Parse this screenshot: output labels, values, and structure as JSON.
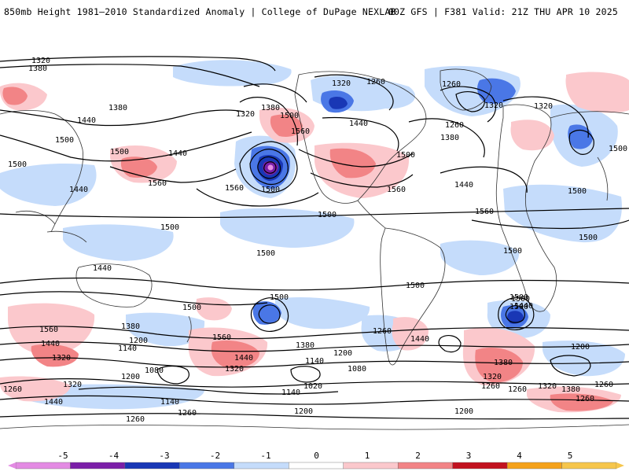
{
  "header": {
    "title_left": "850mb Height 1981–2010 Standardized Anomaly | College of DuPage NEXLAB",
    "title_right": "00Z GFS | F381 Valid: 21Z THU APR 10 2025"
  },
  "colors": {
    "neg5": "#e38be3",
    "neg4": "#7b1fa8",
    "neg3": "#1937b5",
    "neg2": "#4a77e6",
    "neg1": "#c5dcfb",
    "zero": "#ffffff",
    "pos1": "#fbc8cc",
    "pos2": "#f28486",
    "pos3": "#c2121f",
    "pos4": "#f5a21a",
    "pos5": "#f6c64c",
    "contour": "#000000",
    "coast": "#333333"
  },
  "colorbar": {
    "ticks": [
      "-5",
      "-4",
      "-3",
      "-2",
      "-1",
      "0",
      "1",
      "2",
      "3",
      "4",
      "5"
    ]
  },
  "contour_labels": [
    {
      "id": "np-1320-a",
      "text": "1320"
    },
    {
      "id": "np-1380-a",
      "text": "1380"
    },
    {
      "id": "np-1440-a",
      "text": "1440"
    },
    {
      "id": "np-1500-a",
      "text": "1500"
    },
    {
      "id": "np-1500-b",
      "text": "1500"
    },
    {
      "id": "np-1500-c",
      "text": "1500"
    },
    {
      "id": "np-1560-a",
      "text": "1560"
    },
    {
      "id": "np-1440-b",
      "text": "1440"
    },
    {
      "id": "np-1440-c",
      "text": "1440"
    },
    {
      "id": "na-1380-b",
      "text": "1380"
    },
    {
      "id": "na-1320-b",
      "text": "1320"
    },
    {
      "id": "na-1500-d",
      "text": "1500"
    },
    {
      "id": "na-1560-b",
      "text": "1560"
    },
    {
      "id": "pac-1500-low",
      "text": "1500"
    },
    {
      "id": "pac-1560-c",
      "text": "1560"
    },
    {
      "id": "ak-1320-c",
      "text": "1320"
    },
    {
      "id": "ak-1380-c",
      "text": "1380"
    },
    {
      "id": "can-1320-d",
      "text": "1320"
    },
    {
      "id": "can-1260-a",
      "text": "1260"
    },
    {
      "id": "can-1500-e",
      "text": "1500"
    },
    {
      "id": "can-1440-d",
      "text": "1440"
    },
    {
      "id": "us-1560-d",
      "text": "1560"
    },
    {
      "id": "us-1500-f",
      "text": "1500"
    },
    {
      "id": "atl-1380-d",
      "text": "1380"
    },
    {
      "id": "atl-1260-b",
      "text": "1260"
    },
    {
      "id": "gl-1260-c",
      "text": "1260"
    },
    {
      "id": "gl-1320-e",
      "text": "1320"
    },
    {
      "id": "eu-1440-e",
      "text": "1440"
    },
    {
      "id": "atl-1560-e",
      "text": "1560"
    },
    {
      "id": "atl-1500-g",
      "text": "1500"
    },
    {
      "id": "af-1500-h",
      "text": "1500"
    },
    {
      "id": "af-1500-i",
      "text": "1500"
    },
    {
      "id": "af-1500-j",
      "text": "1500"
    },
    {
      "id": "as-1500-k",
      "text": "1500"
    },
    {
      "id": "as-1440-f",
      "text": "1440"
    },
    {
      "id": "io-1500-l",
      "text": "1500"
    },
    {
      "id": "io-1500-m",
      "text": "1500"
    },
    {
      "id": "sp-1500-n",
      "text": "1500"
    },
    {
      "id": "sp-1500-o",
      "text": "1500"
    },
    {
      "id": "sa-1500-p",
      "text": "1500"
    },
    {
      "id": "sa-1500-q",
      "text": "1500"
    },
    {
      "id": "sh-1560-f",
      "text": "1560"
    },
    {
      "id": "sh-1440-g",
      "text": "1440"
    },
    {
      "id": "sh-1320-f",
      "text": "1320"
    },
    {
      "id": "sh-1260-d",
      "text": "1260"
    },
    {
      "id": "sh-1440-h",
      "text": "1440"
    },
    {
      "id": "sh-1380-e",
      "text": "1380"
    },
    {
      "id": "sh-1320-g",
      "text": "1320"
    },
    {
      "id": "sh-1200-a",
      "text": "1200"
    },
    {
      "id": "sh-1140-a",
      "text": "1140"
    },
    {
      "id": "sh-1080-a",
      "text": "1080"
    },
    {
      "id": "sh-1200-b",
      "text": "1200"
    },
    {
      "id": "sh-1140-b",
      "text": "1140"
    },
    {
      "id": "sh-1260-e",
      "text": "1260"
    },
    {
      "id": "sh-1560-g",
      "text": "1560"
    },
    {
      "id": "sh-1440-i",
      "text": "1440"
    },
    {
      "id": "sh-1320-h",
      "text": "1320"
    },
    {
      "id": "sh-1380-f",
      "text": "1380"
    },
    {
      "id": "sh-1200-c",
      "text": "1200"
    },
    {
      "id": "sh-1140-c",
      "text": "1140"
    },
    {
      "id": "sh-1080-b",
      "text": "1080"
    },
    {
      "id": "sh-1020-a",
      "text": "1020"
    },
    {
      "id": "sh-1140-d",
      "text": "1140"
    },
    {
      "id": "sh-1200-d",
      "text": "1200"
    },
    {
      "id": "sh-1260-f",
      "text": "1260"
    },
    {
      "id": "sh-1440-j",
      "text": "1440"
    },
    {
      "id": "sh-1500-r",
      "text": "1500"
    },
    {
      "id": "sh-1440-k",
      "text": "1440"
    },
    {
      "id": "sh-1380-g",
      "text": "1380"
    },
    {
      "id": "sh-1320-i",
      "text": "1320"
    },
    {
      "id": "sh-1260-g",
      "text": "1260"
    },
    {
      "id": "sh-1200-e",
      "text": "1200"
    },
    {
      "id": "sh-1260-h",
      "text": "1260"
    },
    {
      "id": "sh-1320-j",
      "text": "1320"
    },
    {
      "id": "sh-1380-h",
      "text": "1380"
    },
    {
      "id": "sh-1260-i",
      "text": "1260"
    },
    {
      "id": "sh-1200-f",
      "text": "1200"
    },
    {
      "id": "sh-1260-j",
      "text": "1260"
    },
    {
      "id": "sh-1260-k",
      "text": "1260"
    }
  ]
}
